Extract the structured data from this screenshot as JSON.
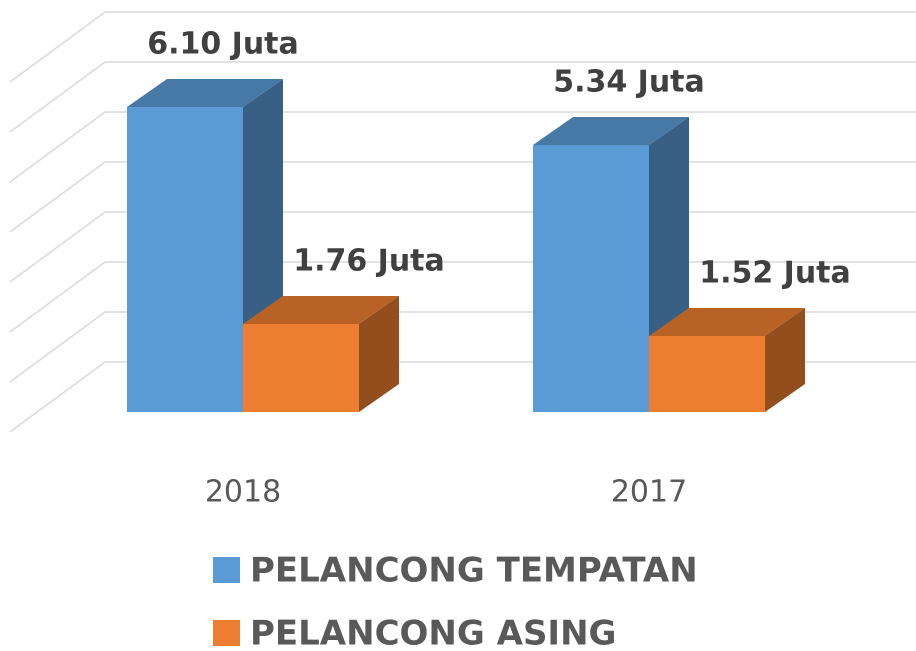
{
  "chart_data": {
    "type": "bar3d",
    "categories": [
      "2018",
      "2017"
    ],
    "series": [
      {
        "name": "PELANCONG TEMPATAN",
        "color": "#5b9bd5",
        "values": [
          6.1,
          5.34
        ],
        "value_labels": [
          "6.10 Juta",
          "5.34 Juta"
        ]
      },
      {
        "name": "PELANCONG ASING",
        "color": "#ed7d31",
        "values": [
          1.76,
          1.52
        ],
        "value_labels": [
          "1.76 Juta",
          "1.52 Juta"
        ]
      }
    ],
    "ylim": [
      0,
      7
    ],
    "yticks": [
      0,
      1,
      2,
      3,
      4,
      5,
      6,
      7
    ],
    "grid": true,
    "legend": "bottom"
  }
}
